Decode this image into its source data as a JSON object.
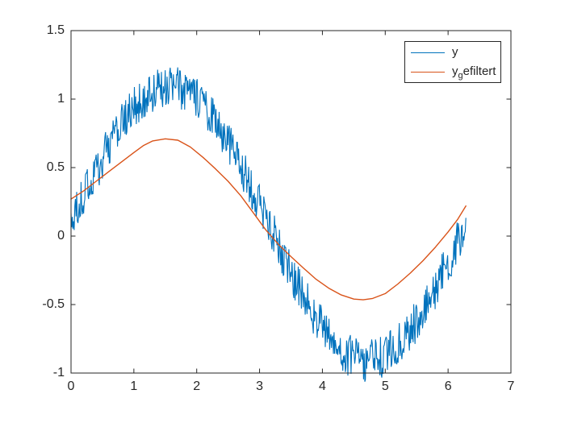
{
  "figure": {
    "background": "#ffffff",
    "axis_color": "#262626",
    "tick_label_color": "#262626"
  },
  "chart_data": {
    "type": "line",
    "title": "",
    "xlabel": "",
    "ylabel": "",
    "xlim": [
      0,
      7
    ],
    "ylim": [
      -1,
      1.5
    ],
    "x_tick_values": [
      0,
      1,
      2,
      3,
      4,
      5,
      6,
      7
    ],
    "x_tick_labels": [
      "0",
      "1",
      "2",
      "3",
      "4",
      "5",
      "6",
      "7"
    ],
    "y_tick_values": [
      -1,
      -0.5,
      0,
      0.5,
      1,
      1.5
    ],
    "y_tick_labels": [
      "-1",
      "-0.5",
      "0",
      "0.5",
      "1",
      "1.5"
    ],
    "grid": false,
    "box": true,
    "tick_direction": "in",
    "legend_position": "northeast",
    "series": [
      {
        "name": "y",
        "color": "#0072BD",
        "line_width": 1.1,
        "kind": "generated-noisy-sine",
        "generator": {
          "formula": "y = sin(x) + dc_offset + uniform_noise(+/- noise_amplitude)",
          "x_start": 0,
          "x_end": 6.283,
          "n_points": 630,
          "dc_offset": 0.09,
          "noise_amplitude": 0.155,
          "seed": 20
        }
      },
      {
        "name": "y_gefiltert",
        "color": "#D95319",
        "line_width": 1.4,
        "kind": "sampled",
        "x": [
          0.0,
          0.2,
          0.4,
          0.6,
          0.8,
          1.0,
          1.15,
          1.3,
          1.5,
          1.7,
          1.9,
          2.1,
          2.3,
          2.5,
          2.7,
          2.9,
          3.1,
          3.3,
          3.5,
          3.7,
          3.9,
          4.1,
          4.3,
          4.5,
          4.65,
          4.8,
          5.0,
          5.2,
          5.4,
          5.6,
          5.8,
          6.0,
          6.15,
          6.283
        ],
        "y": [
          0.27,
          0.33,
          0.4,
          0.47,
          0.54,
          0.61,
          0.66,
          0.695,
          0.71,
          0.7,
          0.65,
          0.575,
          0.49,
          0.4,
          0.295,
          0.17,
          0.045,
          -0.06,
          -0.15,
          -0.235,
          -0.315,
          -0.38,
          -0.43,
          -0.46,
          -0.465,
          -0.455,
          -0.42,
          -0.35,
          -0.27,
          -0.18,
          -0.08,
          0.03,
          0.12,
          0.22
        ]
      }
    ]
  },
  "legend": {
    "border_color": "#262626",
    "entries": [
      {
        "base": "y",
        "sub": "",
        "rest": ""
      },
      {
        "base": "y",
        "sub": "g",
        "rest": "efiltert"
      }
    ]
  }
}
